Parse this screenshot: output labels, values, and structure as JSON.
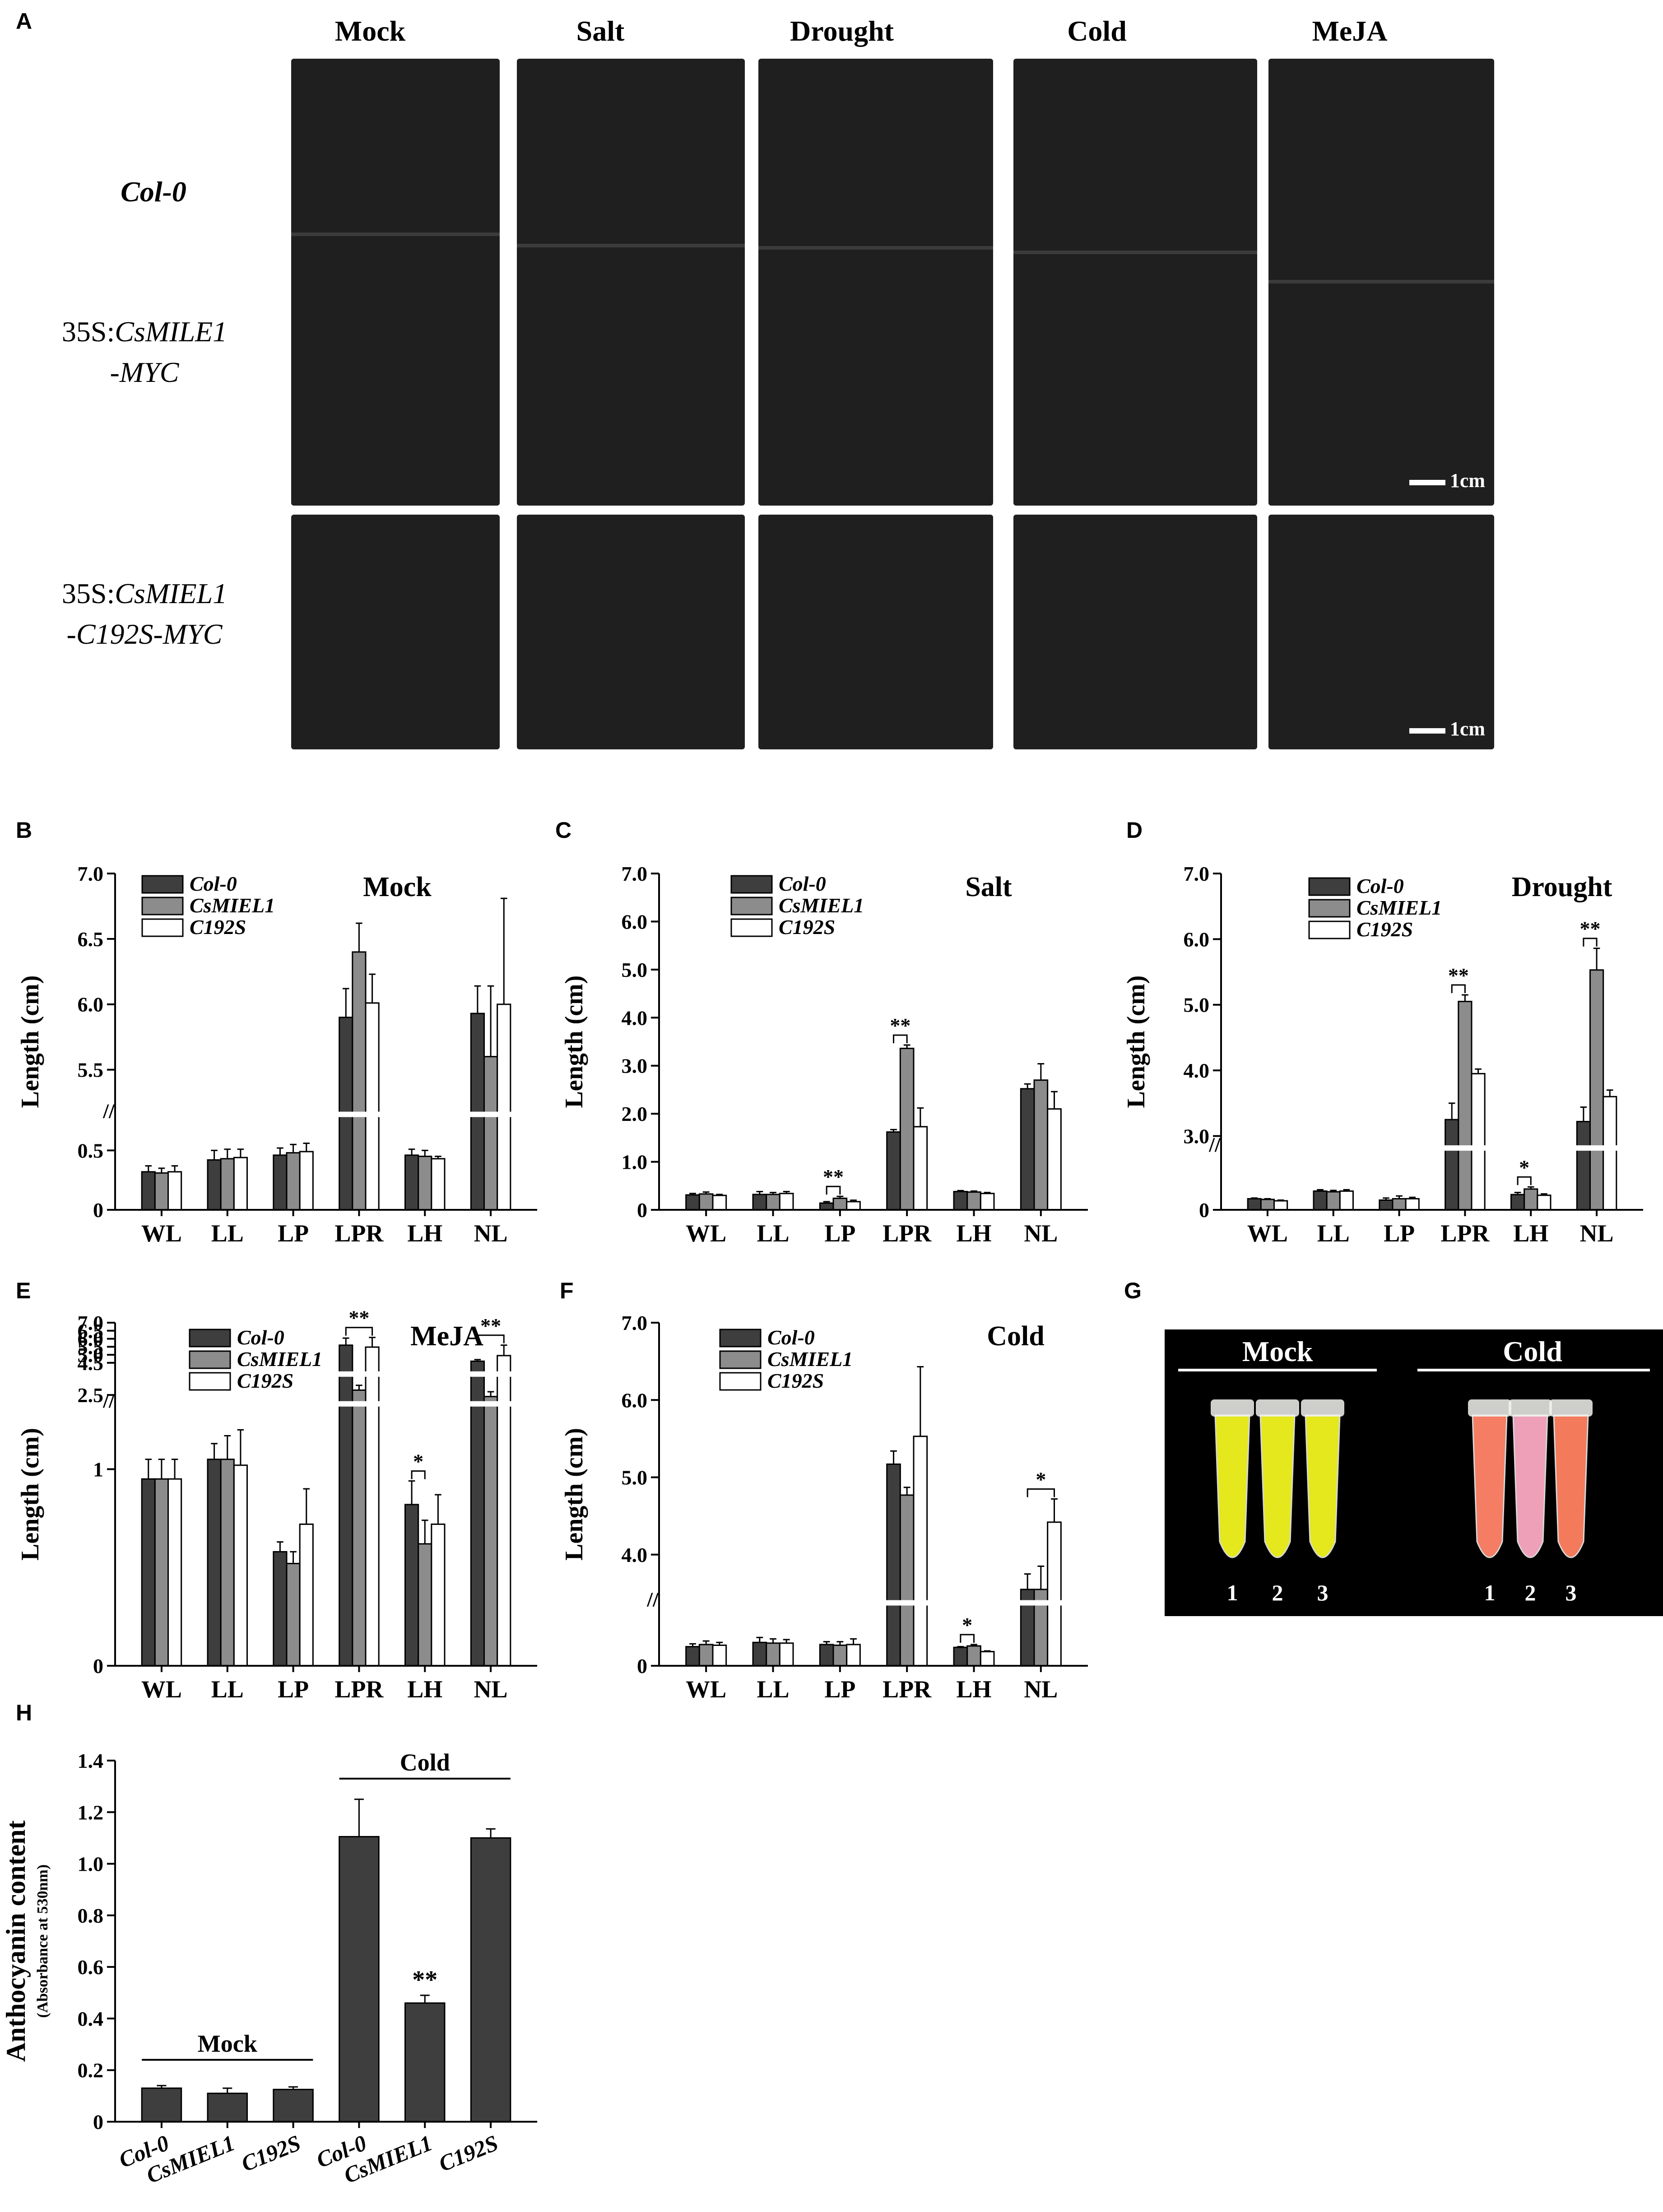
{
  "panel_labels": {
    "a": "A",
    "b": "B",
    "c": "C",
    "d": "D",
    "e": "E",
    "f": "F",
    "g": "G",
    "h": "H"
  },
  "panel_a": {
    "conditions": [
      "Mock",
      "Salt",
      "Drought",
      "Cold",
      "MeJA"
    ],
    "row1": "Col-0",
    "row2_prefix": "35S:",
    "row2_gene": "CsMILE1",
    "row2_suffix": "-MYC",
    "row3_prefix": "35S:",
    "row3_gene": "CsMIEL1",
    "row3_suffix": "-C192S-MYC",
    "scale_label": "1cm",
    "scale_label_2": "1cm"
  },
  "panel_g": {
    "mock_label": "Mock",
    "cold_label": "Cold",
    "tube_numbers": [
      "1",
      "2",
      "3",
      "1",
      "2",
      "3"
    ],
    "colors": {
      "mock": "#e4e81c",
      "cold_1": "#f47d63",
      "cold_2": "#eea0b8",
      "cold_3": "#f47a5c"
    }
  },
  "colors": {
    "col0": "#3e3e3e",
    "csmiel1": "#8c8c8c",
    "c192s": "#ffffff"
  },
  "chart_data": [
    {
      "id": "B",
      "type": "bar",
      "title": "Mock",
      "ylabel": "Length  (cm)",
      "categories": [
        "WL",
        "LL",
        "LP",
        "LPR",
        "LH",
        "NL"
      ],
      "legend": [
        "Col-0",
        "CsMIEL1",
        "C192S"
      ],
      "axis_break": {
        "lower": [
          0,
          0.75
        ],
        "upper": [
          5.2,
          7.0
        ]
      },
      "yticks_lower": [
        "0",
        "0.5"
      ],
      "yticks_upper": [
        "5.5",
        "6.0",
        "6.5",
        "7.0"
      ],
      "series": [
        {
          "name": "Col-0",
          "values": [
            0.32,
            0.42,
            0.46,
            5.9,
            0.46,
            5.93
          ],
          "errors": [
            0.05,
            0.08,
            0.06,
            0.22,
            0.05,
            0.21
          ]
        },
        {
          "name": "CsMIEL1",
          "values": [
            0.31,
            0.43,
            0.48,
            6.4,
            0.45,
            5.6
          ],
          "errors": [
            0.04,
            0.08,
            0.07,
            0.22,
            0.05,
            0.54
          ]
        },
        {
          "name": "C192S",
          "values": [
            0.32,
            0.44,
            0.49,
            6.01,
            0.43,
            6.0
          ],
          "errors": [
            0.05,
            0.07,
            0.07,
            0.22,
            0.02,
            0.81
          ]
        }
      ],
      "significance": []
    },
    {
      "id": "C",
      "type": "bar",
      "title": "Salt",
      "ylabel": "Length  (cm)",
      "categories": [
        "WL",
        "LL",
        "LP",
        "LPR",
        "LH",
        "NL"
      ],
      "legend": [
        "Col-0",
        "CsMIEL1",
        "C192S"
      ],
      "ylim": [
        0,
        7.0
      ],
      "yticks": [
        "0",
        "1.0",
        "2.0",
        "3.0",
        "4.0",
        "5.0",
        "6.0",
        "7.0"
      ],
      "series": [
        {
          "name": "Col-0",
          "values": [
            0.31,
            0.32,
            0.14,
            1.62,
            0.38,
            2.52
          ],
          "errors": [
            0.03,
            0.06,
            0.03,
            0.05,
            0.02,
            0.1
          ]
        },
        {
          "name": "CsMIEL1",
          "values": [
            0.33,
            0.32,
            0.24,
            3.36,
            0.37,
            2.7
          ],
          "errors": [
            0.04,
            0.04,
            0.04,
            0.07,
            0.02,
            0.34
          ]
        },
        {
          "name": "C192S",
          "values": [
            0.3,
            0.34,
            0.17,
            1.73,
            0.34,
            2.1
          ],
          "errors": [
            0.02,
            0.04,
            0.03,
            0.39,
            0.02,
            0.36
          ]
        }
      ],
      "significance": [
        {
          "category": "LP",
          "label": "**"
        },
        {
          "category": "LPR",
          "label": "**"
        }
      ]
    },
    {
      "id": "D",
      "type": "bar",
      "title": "Drought",
      "ylabel": "Length  (cm)",
      "categories": [
        "WL",
        "LL",
        "LP",
        "LPR",
        "LH",
        "NL"
      ],
      "legend": [
        "Col-0",
        "CsMIEL1",
        "C192S"
      ],
      "axis_break": {
        "lower": [
          0,
          0.8
        ],
        "upper": [
          2.9,
          7.0
        ]
      },
      "yticks_lower": [
        "0"
      ],
      "yticks_upper": [
        "3.0",
        "4.0",
        "5.0",
        "6.0",
        "7.0"
      ],
      "series": [
        {
          "name": "Col-0",
          "values": [
            0.16,
            0.27,
            0.14,
            3.25,
            0.22,
            3.22
          ],
          "errors": [
            0.01,
            0.02,
            0.03,
            0.25,
            0.03,
            0.22
          ]
        },
        {
          "name": "CsMIEL1",
          "values": [
            0.15,
            0.26,
            0.16,
            5.05,
            0.3,
            5.53
          ],
          "errors": [
            0.01,
            0.02,
            0.04,
            0.1,
            0.03,
            0.33
          ]
        },
        {
          "name": "C192S",
          "values": [
            0.13,
            0.27,
            0.16,
            3.95,
            0.21,
            3.6
          ],
          "errors": [
            0.01,
            0.02,
            0.02,
            0.07,
            0.02,
            0.1
          ]
        }
      ],
      "significance": [
        {
          "category": "LPR",
          "label": "**"
        },
        {
          "category": "LH",
          "label": "*"
        },
        {
          "category": "NL",
          "label": "**"
        }
      ]
    },
    {
      "id": "E",
      "type": "bar",
      "title": "MeJA",
      "ylabel": "Length  (cm)",
      "categories": [
        "WL",
        "LL",
        "LP",
        "LPR",
        "LH",
        "NL"
      ],
      "legend": [
        "Col-0",
        "CsMIEL1",
        "C192S"
      ],
      "axis_break": {
        "lower": [
          0,
          1.3
        ],
        "upper": [
          2.3,
          7.0
        ]
      },
      "yticks_lower": [
        "0",
        "1"
      ],
      "yticks_upper": [
        "2.5",
        "4.5",
        "5.0",
        "5.5",
        "6.0",
        "6.5",
        "7.0"
      ],
      "series": [
        {
          "name": "Col-0",
          "values": [
            0.95,
            1.05,
            0.58,
            5.6,
            0.82,
            4.6
          ],
          "errors": [
            0.1,
            0.08,
            0.05,
            0.44,
            0.12,
            0.1
          ]
        },
        {
          "name": "CsMIEL1",
          "values": [
            0.95,
            1.05,
            0.52,
            2.8,
            0.62,
            2.4
          ],
          "errors": [
            0.1,
            0.12,
            0.06,
            0.3,
            0.12,
            0.3
          ]
        },
        {
          "name": "C192S",
          "values": [
            0.95,
            1.02,
            0.72,
            5.48,
            0.72,
            4.95
          ],
          "errors": [
            0.1,
            0.18,
            0.18,
            0.6,
            0.15,
            0.65
          ]
        }
      ],
      "significance": [
        {
          "category": "LPR",
          "label": "**"
        },
        {
          "category": "LH",
          "label": "*"
        },
        {
          "category": "NL",
          "label": "**"
        }
      ]
    },
    {
      "id": "F",
      "type": "bar",
      "title": "Cold",
      "ylabel": "Length  (cm)",
      "categories": [
        "WL",
        "LL",
        "LP",
        "LPR",
        "LH",
        "NL"
      ],
      "legend": [
        "Col-0",
        "CsMIEL1",
        "C192S"
      ],
      "axis_break": {
        "lower": [
          0,
          0.8
        ],
        "upper": [
          3.45,
          7.0
        ]
      },
      "yticks_lower": [
        "0"
      ],
      "yticks_upper": [
        "4.0",
        "5.0",
        "6.0",
        "7.0"
      ],
      "series": [
        {
          "name": "Col-0",
          "values": [
            0.27,
            0.33,
            0.3,
            5.17,
            0.26,
            3.55
          ],
          "errors": [
            0.04,
            0.07,
            0.04,
            0.17,
            0.01,
            0.2
          ]
        },
        {
          "name": "CsMIEL1",
          "values": [
            0.3,
            0.32,
            0.29,
            4.77,
            0.28,
            3.55
          ],
          "errors": [
            0.05,
            0.06,
            0.05,
            0.1,
            0.02,
            0.3
          ]
        },
        {
          "name": "C192S",
          "values": [
            0.29,
            0.32,
            0.3,
            5.53,
            0.2,
            4.42
          ],
          "errors": [
            0.04,
            0.05,
            0.08,
            0.9,
            0.01,
            0.3
          ]
        }
      ],
      "significance": [
        {
          "category": "LH",
          "label": "*"
        },
        {
          "category": "NL",
          "label": "*"
        }
      ]
    },
    {
      "id": "H",
      "type": "bar",
      "ylabel": "Anthocyanin content",
      "ylabel_sub": "(Absorbance at 530nm)",
      "categories": [
        "Col-0",
        "CsMIEL1",
        "C192S",
        "Col-0",
        "CsMIEL1",
        "C192S"
      ],
      "group_labels": [
        "Mock",
        "Cold"
      ],
      "ylim": [
        0,
        1.4
      ],
      "yticks": [
        "0",
        "0.2",
        "0.4",
        "0.6",
        "0.8",
        "1.0",
        "1.2",
        "1.4"
      ],
      "values": [
        0.13,
        0.11,
        0.125,
        1.105,
        0.46,
        1.1
      ],
      "errors": [
        0.01,
        0.02,
        0.01,
        0.145,
        0.03,
        0.035
      ],
      "significance": [
        {
          "index": 4,
          "label": "**"
        }
      ]
    }
  ]
}
